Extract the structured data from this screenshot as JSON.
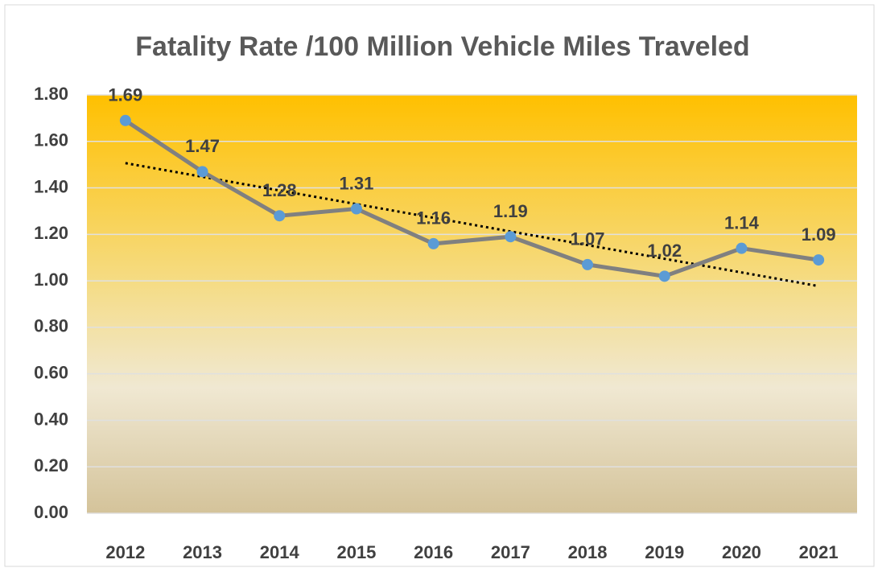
{
  "chart_data": {
    "type": "line",
    "title": "Fatality Rate /100 Million Vehicle Miles Traveled",
    "categories": [
      "2012",
      "2013",
      "2014",
      "2015",
      "2016",
      "2017",
      "2018",
      "2019",
      "2020",
      "2021"
    ],
    "series": [
      {
        "name": "Fatality Rate",
        "color": "#808080",
        "marker_color": "#5b9bd5",
        "values": [
          1.69,
          1.47,
          1.28,
          1.31,
          1.16,
          1.19,
          1.07,
          1.02,
          1.14,
          1.09
        ]
      }
    ],
    "trendline": {
      "type": "linear",
      "color": "#000000"
    },
    "ylim": [
      0,
      1.8
    ],
    "yticks": [
      {
        "value": 0,
        "label": "0.00"
      },
      {
        "value": 0.2,
        "label": "0.20"
      },
      {
        "value": 0.4,
        "label": "0.40"
      },
      {
        "value": 0.6,
        "label": "0.60"
      },
      {
        "value": 0.8,
        "label": "0.80"
      },
      {
        "value": 1,
        "label": "1.00"
      },
      {
        "value": 1.2,
        "label": "1.20"
      },
      {
        "value": 1.4,
        "label": "1.40"
      },
      {
        "value": 1.6,
        "label": "1.60"
      },
      {
        "value": 1.8,
        "label": "1.80"
      }
    ],
    "grid": true
  }
}
